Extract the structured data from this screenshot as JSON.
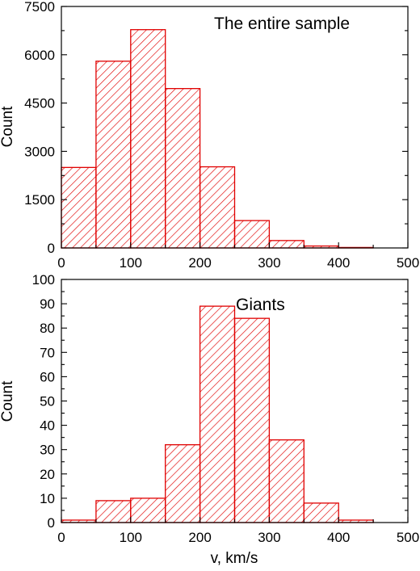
{
  "chart_data": [
    {
      "type": "bar",
      "annotation": "The entire sample",
      "xlabel": "",
      "ylabel": "Count",
      "xlim": [
        0,
        500
      ],
      "ylim": [
        0,
        7500
      ],
      "xticks": [
        0,
        100,
        200,
        300,
        400,
        500
      ],
      "yticks": [
        0,
        1500,
        3000,
        4500,
        6000,
        7500
      ],
      "bin_edges": [
        0,
        50,
        100,
        150,
        200,
        250,
        300,
        350,
        400,
        450
      ],
      "values": [
        2500,
        5800,
        6780,
        4950,
        2520,
        850,
        230,
        60,
        15
      ],
      "bar_color": "#e00000",
      "hatch": "diagonal",
      "grid": false
    },
    {
      "type": "bar",
      "annotation": "Giants",
      "xlabel": "v, km/s",
      "ylabel": "Count",
      "xlim": [
        0,
        500
      ],
      "ylim": [
        0,
        100
      ],
      "xticks": [
        0,
        100,
        200,
        300,
        400,
        500
      ],
      "yticks": [
        0,
        10,
        20,
        30,
        40,
        50,
        60,
        70,
        80,
        90,
        100
      ],
      "bin_edges": [
        0,
        50,
        100,
        150,
        200,
        250,
        300,
        350,
        400,
        450
      ],
      "values": [
        1,
        9,
        10,
        32,
        89,
        84,
        34,
        8,
        1
      ],
      "bar_color": "#e00000",
      "hatch": "diagonal",
      "grid": false
    }
  ]
}
